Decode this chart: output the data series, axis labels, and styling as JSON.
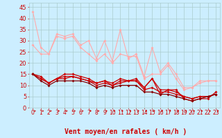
{
  "background_color": "#cceeff",
  "grid_color": "#aacccc",
  "xlabel": "Vent moyen/en rafales ( km/h )",
  "xlabel_color": "#cc0000",
  "xlabel_fontsize": 7,
  "tick_color": "#cc0000",
  "ytick_fontsize": 6,
  "xtick_fontsize": 5.5,
  "ylim": [
    0,
    47
  ],
  "xlim": [
    -0.5,
    23.5
  ],
  "yticks": [
    0,
    5,
    10,
    15,
    20,
    25,
    30,
    35,
    40,
    45
  ],
  "xticks": [
    0,
    1,
    2,
    3,
    4,
    5,
    6,
    7,
    8,
    9,
    10,
    11,
    12,
    13,
    14,
    15,
    16,
    17,
    18,
    19,
    20,
    21,
    22,
    23
  ],
  "series": [
    {
      "color": "#ffaaaa",
      "lw": 0.8,
      "marker": "D",
      "ms": 2.0,
      "y": [
        43,
        27,
        24,
        33,
        32,
        33,
        28,
        30,
        22,
        30,
        21,
        35,
        22,
        24,
        14,
        27,
        16,
        20,
        15,
        9,
        9,
        12,
        12,
        12
      ]
    },
    {
      "color": "#ffaaaa",
      "lw": 0.8,
      "marker": "D",
      "ms": 2.0,
      "y": [
        28,
        24,
        24,
        32,
        31,
        32,
        27,
        24,
        21,
        24,
        20,
        24,
        23,
        23,
        13,
        15,
        15,
        19,
        13,
        8,
        9,
        11,
        12,
        12
      ]
    },
    {
      "color": "#cc0000",
      "lw": 0.9,
      "marker": "D",
      "ms": 2.0,
      "y": [
        15,
        13,
        11,
        13,
        15,
        15,
        14,
        13,
        11,
        12,
        11,
        13,
        12,
        13,
        9,
        13,
        8,
        8,
        7,
        5,
        4,
        5,
        5,
        6
      ]
    },
    {
      "color": "#cc0000",
      "lw": 0.9,
      "marker": "D",
      "ms": 2.0,
      "y": [
        15,
        13,
        11,
        13,
        14,
        14,
        13,
        12,
        11,
        12,
        10,
        12,
        12,
        12,
        8,
        9,
        7,
        7,
        6,
        5,
        4,
        5,
        5,
        6
      ]
    },
    {
      "color": "#cc0000",
      "lw": 0.9,
      "marker": "D",
      "ms": 2.0,
      "y": [
        15,
        14,
        11,
        13,
        13,
        14,
        13,
        12,
        10,
        11,
        10,
        11,
        12,
        12,
        9,
        13,
        6,
        8,
        8,
        4,
        3,
        4,
        4,
        7
      ]
    },
    {
      "color": "#880000",
      "lw": 0.9,
      "marker": "D",
      "ms": 2.0,
      "y": [
        15,
        12,
        10,
        12,
        12,
        12,
        12,
        11,
        9,
        10,
        9,
        10,
        10,
        10,
        7,
        7,
        6,
        6,
        5,
        4,
        3,
        4,
        5,
        6
      ]
    }
  ],
  "arrow_color": "#cc0000"
}
